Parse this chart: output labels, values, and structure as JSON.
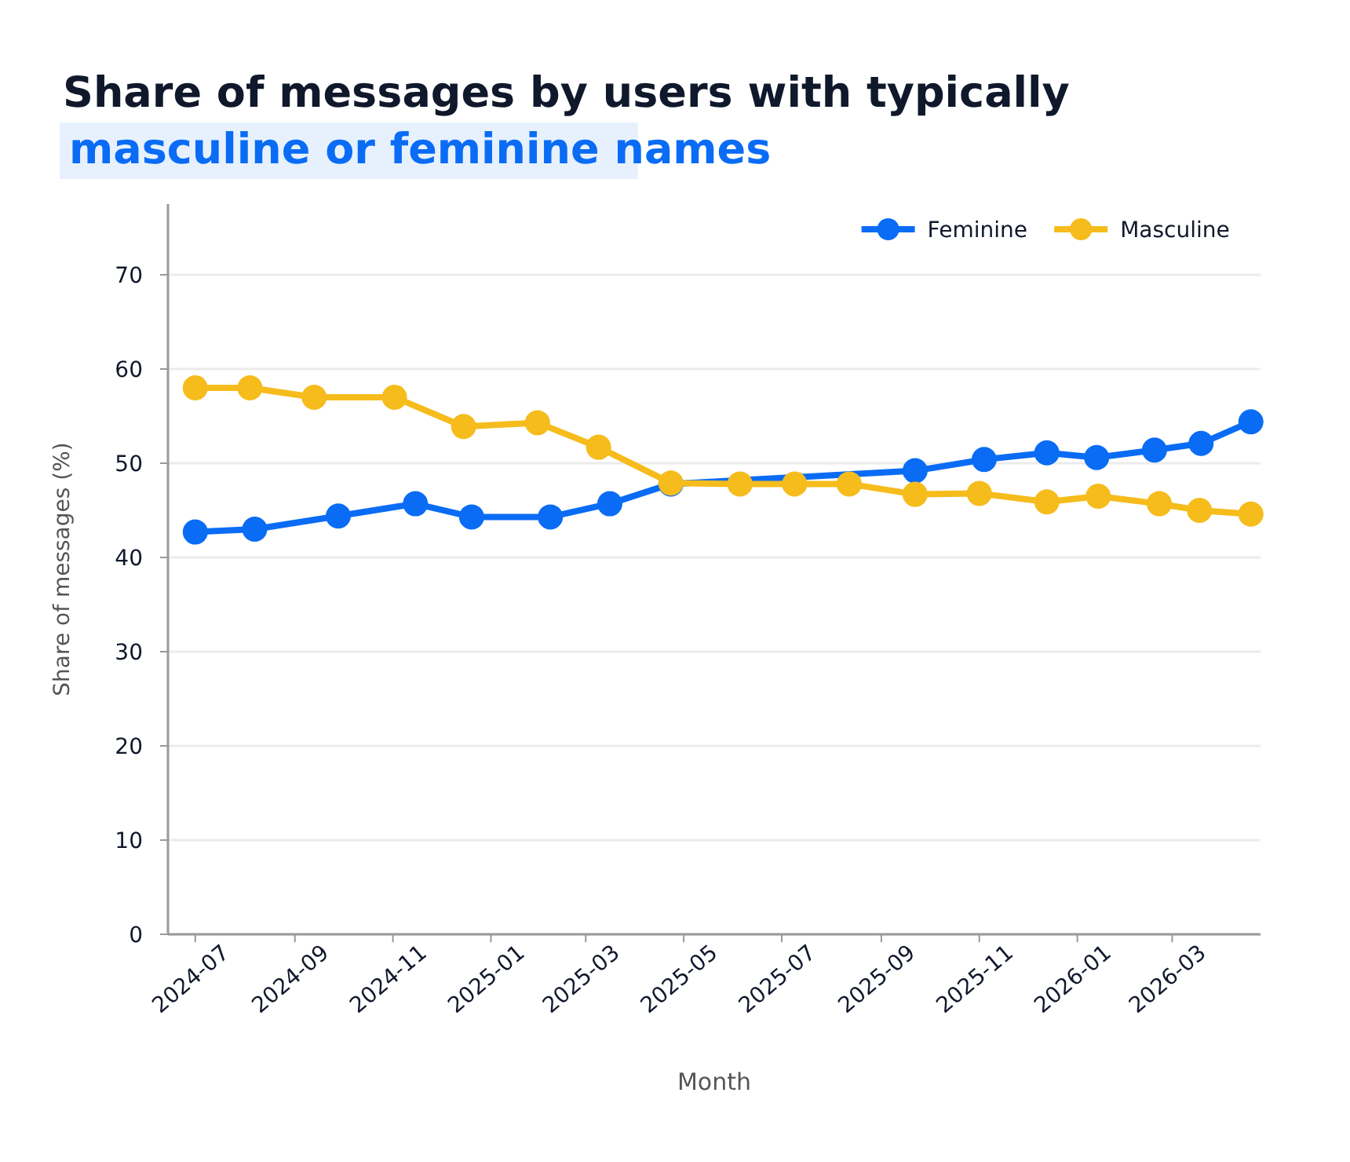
{
  "chart_data": {
    "type": "line",
    "title": "Share of messages by users with typically",
    "subtitle": "masculine or feminine names",
    "xlabel": "Month",
    "ylabel": "Share of messages (%)",
    "xlim": [
      "2024-06-14",
      "2026-04-25"
    ],
    "xticks": [
      "2024-07",
      "2024-09",
      "2024-11",
      "2025-01",
      "2025-03",
      "2025-05",
      "2025-07",
      "2025-09",
      "2025-11",
      "2026-01",
      "2026-03"
    ],
    "ylim": [
      0,
      77.5
    ],
    "yticks": [
      0,
      10,
      20,
      30,
      40,
      50,
      60,
      70
    ],
    "grid": "y",
    "legend": "top right",
    "marker": "circle",
    "line_style": "solid",
    "series": [
      {
        "name": "Feminine",
        "color": "#0a6cf5",
        "x": [
          "2024-07-01",
          "2024-08-07",
          "2024-09-28",
          "2024-11-15",
          "2024-12-20",
          "2025-02-07",
          "2025-03-16",
          "2025-04-23",
          "2025-06-05",
          "2025-07-09",
          "2025-08-12",
          "2025-09-22",
          "2025-11-04",
          "2025-12-13",
          "2026-01-13",
          "2026-02-18",
          "2026-03-19",
          "2026-04-19"
        ],
        "values": [
          42.7,
          43.0,
          44.4,
          45.7,
          44.3,
          44.3,
          45.7,
          47.8,
          null,
          null,
          null,
          49.2,
          50.4,
          51.1,
          50.6,
          51.4,
          52.1,
          54.4
        ]
      },
      {
        "name": "Masculine",
        "color": "#f5bc1c",
        "x": [
          "2024-07-01",
          "2024-08-04",
          "2024-09-13",
          "2024-11-02",
          "2024-12-15",
          "2025-01-30",
          "2025-03-09",
          "2025-04-23",
          "2025-06-05",
          "2025-07-09",
          "2025-08-12",
          "2025-09-22",
          "2025-11-01",
          "2025-12-13",
          "2026-01-14",
          "2026-02-21",
          "2026-03-18",
          "2026-04-19"
        ],
        "values": [
          58.0,
          58.0,
          57.0,
          57.0,
          53.9,
          54.3,
          51.7,
          47.9,
          47.8,
          47.8,
          47.8,
          46.7,
          46.8,
          45.9,
          46.5,
          45.7,
          45.0,
          44.6
        ]
      }
    ]
  }
}
